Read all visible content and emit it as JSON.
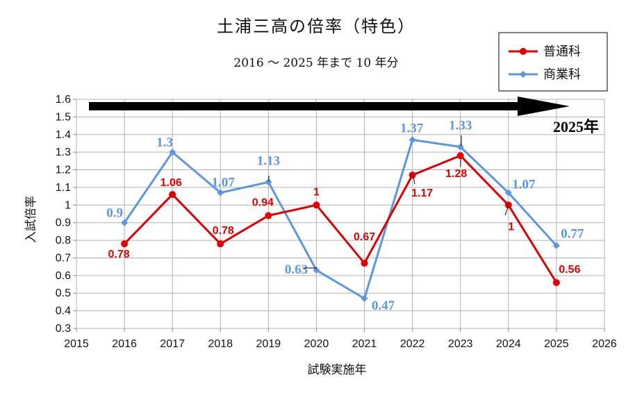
{
  "chart_data": {
    "type": "line",
    "title": "土浦三高の倍率（特色）",
    "subtitle": "2016 ～ 2025 年まで 10 年分",
    "xlabel": "試験実施年",
    "ylabel": "入試倍率",
    "xlim": [
      2015,
      2026
    ],
    "ylim": [
      0.3,
      1.6
    ],
    "x_ticks": [
      "2015",
      "2016",
      "2017",
      "2018",
      "2019",
      "2020",
      "2021",
      "2022",
      "2023",
      "2024",
      "2025",
      "2026"
    ],
    "y_ticks": [
      "0.3",
      "0.4",
      "0.5",
      "0.6",
      "0.7",
      "0.8",
      "0.9",
      "1",
      "1.1",
      "1.2",
      "1.3",
      "1.4",
      "1.5",
      "1.6"
    ],
    "grid": true,
    "legend_position": "top-right",
    "x": [
      2016,
      2017,
      2018,
      2019,
      2020,
      2021,
      2022,
      2023,
      2024,
      2025
    ],
    "series": [
      {
        "name": "普通科",
        "color": "#e00000",
        "marker": "circle",
        "values": [
          0.78,
          1.06,
          0.78,
          0.94,
          1,
          0.67,
          1.17,
          1.28,
          1,
          0.56
        ],
        "labels": [
          "0.78",
          "1.06",
          "0.78",
          "0.94",
          "1",
          "0.67",
          "1.17",
          "1.28",
          "1",
          "0.56"
        ]
      },
      {
        "name": "商業科",
        "color": "#5b96e0",
        "marker": "diamond",
        "values": [
          0.9,
          1.3,
          1.07,
          1.13,
          0.63,
          0.47,
          1.37,
          1.33,
          1.07,
          0.77
        ],
        "labels": [
          "0.9",
          "1.3",
          "1.07",
          "1.13",
          "0.63",
          "0.47",
          "1.37",
          "1.33",
          "1.07",
          "0.77"
        ]
      }
    ],
    "annotation": {
      "text": "2025年",
      "arrow": "right"
    }
  }
}
